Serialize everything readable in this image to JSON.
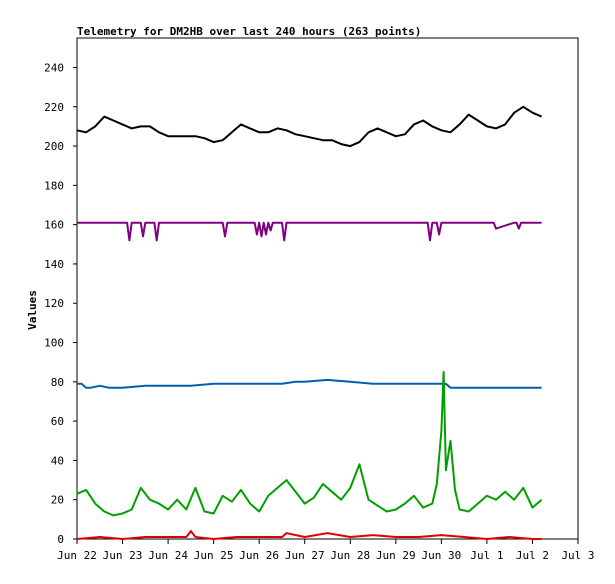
{
  "chart_data": {
    "type": "line",
    "title": "Telemetry for DM2HB over last 240 hours (263 points)",
    "xlabel": "",
    "ylabel": "Values",
    "ylim": [
      0,
      255
    ],
    "yticks": [
      0,
      20,
      40,
      60,
      80,
      100,
      120,
      140,
      160,
      180,
      200,
      220,
      240
    ],
    "xlim": [
      0,
      11
    ],
    "x_unit": "days since Jun 22",
    "xticks": [
      {
        "x": 0,
        "label": "Jun 22"
      },
      {
        "x": 1,
        "label": "Jun 23"
      },
      {
        "x": 2,
        "label": "Jun 24"
      },
      {
        "x": 3,
        "label": "Jun 25"
      },
      {
        "x": 4,
        "label": "Jun 26"
      },
      {
        "x": 5,
        "label": "Jun 27"
      },
      {
        "x": 6,
        "label": "Jun 28"
      },
      {
        "x": 7,
        "label": "Jun 29"
      },
      {
        "x": 8,
        "label": "Jun 30"
      },
      {
        "x": 9,
        "label": "Jul 1"
      },
      {
        "x": 10,
        "label": "Jul 2"
      },
      {
        "x": 11,
        "label": "Jul 3"
      }
    ],
    "grid": false,
    "legend": "none",
    "series": [
      {
        "color": "#000000",
        "x": [
          0.0,
          0.2,
          0.4,
          0.6,
          0.8,
          1.0,
          1.2,
          1.4,
          1.6,
          1.8,
          2.0,
          2.2,
          2.4,
          2.6,
          2.8,
          3.0,
          3.2,
          3.4,
          3.6,
          3.8,
          4.0,
          4.2,
          4.4,
          4.6,
          4.8,
          5.0,
          5.2,
          5.4,
          5.6,
          5.8,
          6.0,
          6.2,
          6.4,
          6.6,
          6.8,
          7.0,
          7.2,
          7.4,
          7.6,
          7.8,
          8.0,
          8.2,
          8.4,
          8.6,
          8.8,
          9.0,
          9.2,
          9.4,
          9.6,
          9.8,
          10.0,
          10.2
        ],
        "y": [
          208,
          207,
          210,
          215,
          213,
          211,
          209,
          210,
          210,
          207,
          205,
          205,
          205,
          205,
          204,
          202,
          203,
          207,
          211,
          209,
          207,
          207,
          209,
          208,
          206,
          205,
          204,
          203,
          203,
          201,
          200,
          202,
          207,
          209,
          207,
          205,
          206,
          211,
          213,
          210,
          208,
          207,
          211,
          216,
          213,
          210,
          209,
          211,
          217,
          220,
          217,
          215
        ]
      },
      {
        "color": "#800080",
        "x": [
          0.0,
          1.0,
          1.1,
          1.15,
          1.2,
          1.3,
          1.4,
          1.45,
          1.5,
          1.6,
          1.7,
          1.75,
          1.8,
          1.9,
          3.2,
          3.25,
          3.3,
          3.35,
          3.9,
          3.95,
          4.0,
          4.05,
          4.1,
          4.15,
          4.2,
          4.25,
          4.3,
          4.35,
          4.4,
          4.45,
          4.5,
          4.55,
          4.6,
          4.65,
          4.7,
          4.75,
          4.8,
          4.85,
          4.9,
          7.7,
          7.75,
          7.8,
          7.85,
          7.9,
          7.95,
          8.0,
          9.1,
          9.15,
          9.2,
          9.6,
          9.65,
          9.7,
          9.75,
          9.8,
          9.85,
          9.9,
          10.2
        ],
        "y": [
          161,
          161,
          161,
          152,
          161,
          161,
          161,
          154,
          161,
          161,
          161,
          152,
          161,
          161,
          161,
          154,
          161,
          161,
          161,
          155,
          161,
          154,
          161,
          155,
          161,
          157,
          161,
          161,
          161,
          161,
          161,
          152,
          161,
          161,
          161,
          161,
          161,
          161,
          161,
          161,
          152,
          161,
          161,
          161,
          155,
          161,
          161,
          161,
          158,
          161,
          161,
          158,
          161,
          161,
          161,
          161,
          161
        ]
      },
      {
        "color": "#0060b0",
        "x": [
          0.0,
          0.1,
          0.2,
          0.3,
          0.5,
          0.7,
          0.8,
          1.0,
          1.5,
          2.0,
          2.5,
          3.0,
          3.5,
          4.0,
          4.5,
          4.8,
          5.0,
          5.5,
          6.0,
          6.5,
          7.0,
          7.5,
          8.0,
          8.1,
          8.2,
          8.5,
          9.0,
          9.5,
          10.0,
          10.2
        ],
        "y": [
          79,
          79,
          77,
          77,
          78,
          77,
          77,
          77,
          78,
          78,
          78,
          79,
          79,
          79,
          79,
          80,
          80,
          81,
          80,
          79,
          79,
          79,
          79,
          79,
          77,
          77,
          77,
          77,
          77,
          77
        ]
      },
      {
        "color": "#00a000",
        "x": [
          0.0,
          0.2,
          0.4,
          0.6,
          0.8,
          1.0,
          1.2,
          1.4,
          1.6,
          1.8,
          2.0,
          2.2,
          2.4,
          2.6,
          2.8,
          3.0,
          3.2,
          3.4,
          3.6,
          3.8,
          4.0,
          4.2,
          4.4,
          4.6,
          4.8,
          5.0,
          5.2,
          5.4,
          5.6,
          5.8,
          6.0,
          6.2,
          6.4,
          6.6,
          6.8,
          7.0,
          7.2,
          7.4,
          7.6,
          7.8,
          7.9,
          8.0,
          8.05,
          8.1,
          8.2,
          8.3,
          8.4,
          8.6,
          8.8,
          9.0,
          9.2,
          9.4,
          9.6,
          9.8,
          10.0,
          10.2
        ],
        "y": [
          23,
          25,
          18,
          14,
          12,
          13,
          15,
          26,
          20,
          18,
          15,
          20,
          15,
          26,
          14,
          13,
          22,
          19,
          25,
          18,
          14,
          22,
          26,
          30,
          24,
          18,
          21,
          28,
          24,
          20,
          26,
          38,
          20,
          17,
          14,
          15,
          18,
          22,
          16,
          18,
          28,
          55,
          85,
          35,
          50,
          25,
          15,
          14,
          18,
          22,
          20,
          24,
          20,
          26,
          16,
          20
        ]
      },
      {
        "color": "#e00000",
        "x": [
          0.0,
          0.5,
          1.0,
          1.5,
          2.0,
          2.4,
          2.5,
          2.6,
          3.0,
          3.5,
          4.0,
          4.5,
          4.6,
          5.0,
          5.5,
          6.0,
          6.5,
          7.0,
          7.5,
          8.0,
          8.5,
          9.0,
          9.5,
          10.0,
          10.2
        ],
        "y": [
          0,
          1,
          0,
          1,
          1,
          1,
          4,
          1,
          0,
          1,
          1,
          1,
          3,
          1,
          3,
          1,
          2,
          1,
          1,
          2,
          1,
          0,
          1,
          0,
          0
        ]
      }
    ]
  }
}
